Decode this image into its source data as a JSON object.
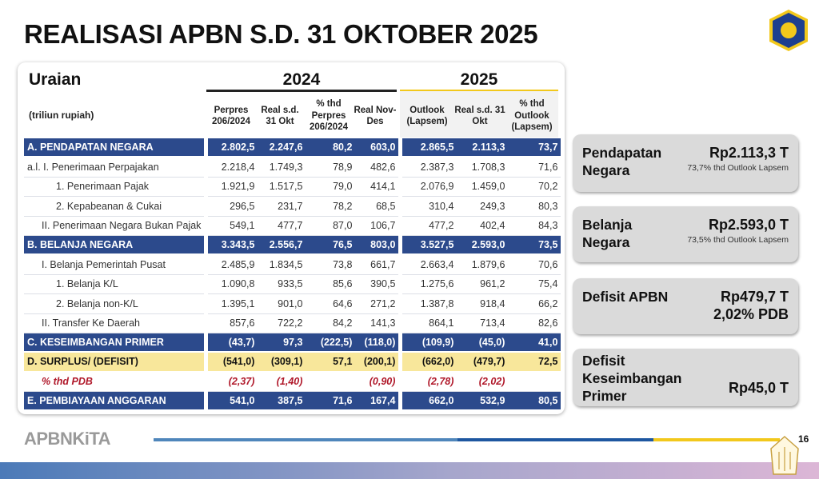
{
  "title": "REALISASI APBN S.D. 31 OKTOBER 2025",
  "table": {
    "uraian": "Uraian",
    "unit": "(triliun rupiah)",
    "year_2024": "2024",
    "year_2025": "2025",
    "columns": [
      "Perpres 206/2024",
      "Real s.d. 31 Okt",
      "% thd Perpres 206/2024",
      "Real Nov-Des",
      "Outlook (Lapsem)",
      "Real s.d. 31 Okt",
      "% thd Outlook (Lapsem)"
    ],
    "rows": [
      {
        "label": "A. PENDAPATAN NEGARA",
        "type": "blue",
        "values": [
          "2.802,5",
          "2.247,6",
          "80,2",
          "603,0",
          "2.865,5",
          "2.113,3",
          "73,7"
        ]
      },
      {
        "label": "a.l.  I. Penerimaan Perpajakan",
        "type": "normal",
        "values": [
          "2.218,4",
          "1.749,3",
          "78,9",
          "482,6",
          "2.387,3",
          "1.708,3",
          "71,6"
        ]
      },
      {
        "label": "1.  Penerimaan Pajak",
        "type": "normal",
        "indent": 2,
        "values": [
          "1.921,9",
          "1.517,5",
          "79,0",
          "414,1",
          "2.076,9",
          "1.459,0",
          "70,2"
        ]
      },
      {
        "label": "2.  Kepabeanan & Cukai",
        "type": "normal",
        "indent": 2,
        "values": [
          "296,5",
          "231,7",
          "78,2",
          "68,5",
          "310,4",
          "249,3",
          "80,3"
        ]
      },
      {
        "label": "II. Penerimaan Negara Bukan Pajak",
        "type": "normal",
        "indent": 1,
        "values": [
          "549,1",
          "477,7",
          "87,0",
          "106,7",
          "477,2",
          "402,4",
          "84,3"
        ]
      },
      {
        "label": "B. BELANJA NEGARA",
        "type": "blue",
        "values": [
          "3.343,5",
          "2.556,7",
          "76,5",
          "803,0",
          "3.527,5",
          "2.593,0",
          "73,5"
        ]
      },
      {
        "label": "I. Belanja Pemerintah Pusat",
        "type": "normal",
        "indent": 1,
        "values": [
          "2.485,9",
          "1.834,5",
          "73,8",
          "661,7",
          "2.663,4",
          "1.879,6",
          "70,6"
        ]
      },
      {
        "label": "1.  Belanja K/L",
        "type": "normal",
        "indent": 2,
        "values": [
          "1.090,8",
          "933,5",
          "85,6",
          "390,5",
          "1.275,6",
          "961,2",
          "75,4"
        ]
      },
      {
        "label": "2.  Belanja non-K/L",
        "type": "normal",
        "indent": 2,
        "values": [
          "1.395,1",
          "901,0",
          "64,6",
          "271,2",
          "1.387,8",
          "918,4",
          "66,2"
        ]
      },
      {
        "label": "II. Transfer Ke Daerah",
        "type": "normal",
        "indent": 1,
        "values": [
          "857,6",
          "722,2",
          "84,2",
          "141,3",
          "864,1",
          "713,4",
          "82,6"
        ]
      },
      {
        "label": "C. KESEIMBANGAN PRIMER",
        "type": "blue",
        "values": [
          "(43,7)",
          "97,3",
          "(222,5)",
          "(118,0)",
          "(109,9)",
          "(45,0)",
          "41,0"
        ]
      },
      {
        "label": "D. SURPLUS/ (DEFISIT)",
        "type": "yellow",
        "values": [
          "(541,0)",
          "(309,1)",
          "57,1",
          "(200,1)",
          "(662,0)",
          "(479,7)",
          "72,5"
        ]
      },
      {
        "label": "% thd PDB",
        "type": "pdb",
        "indent": 1,
        "values": [
          "(2,37)",
          "(1,40)",
          "",
          "(0,90)",
          "(2,78)",
          "(2,02)",
          ""
        ]
      },
      {
        "label": "E. PEMBIAYAAN ANGGARAN",
        "type": "blue",
        "values": [
          "541,0",
          "387,5",
          "71,6",
          "167,4",
          "662,0",
          "532,9",
          "80,5"
        ]
      }
    ]
  },
  "summary": [
    {
      "label": "Pendapatan Negara",
      "value": "Rp2.113,3 T",
      "sub": "73,7% thd Outlook Lapsem"
    },
    {
      "label": "Belanja Negara",
      "value": "Rp2.593,0 T",
      "sub": "73,5% thd Outlook Lapsem"
    },
    {
      "label": "Defisit APBN",
      "value": "Rp479,7 T",
      "value2": "2,02% PDB"
    },
    {
      "label": "Defisit Keseimbangan Primer",
      "value": "Rp45,0 T"
    }
  ],
  "footer": {
    "brand": "APBNKiTA",
    "page": "16"
  },
  "colors": {
    "blue": "#2c4a8c",
    "yellow": "#f8e79b",
    "red": "#b0182a",
    "gold": "#f2c81c"
  }
}
